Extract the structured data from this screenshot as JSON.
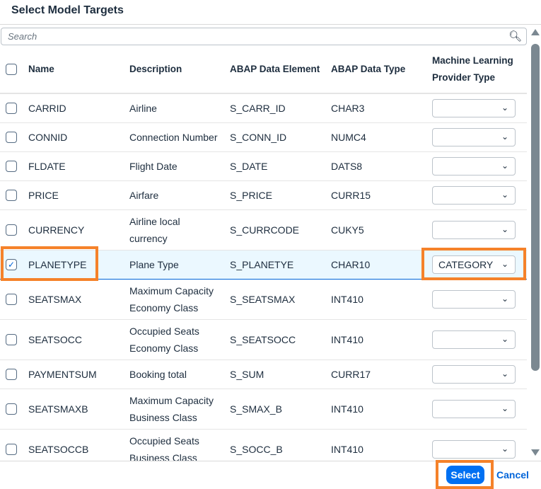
{
  "dialog": {
    "title": "Select Model Targets"
  },
  "search": {
    "placeholder": "Search"
  },
  "columns": {
    "name": "Name",
    "description": "Description",
    "element": "ABAP Data Element",
    "type": "ABAP Data Type",
    "ml_line1": "Machine Learning",
    "ml_line2": "Provider Type"
  },
  "rows": [
    {
      "name": "CARRID",
      "desc1": "Airline",
      "desc2": "",
      "element": "S_CARR_ID",
      "type": "CHAR3",
      "ml": "",
      "checked": false
    },
    {
      "name": "CONNID",
      "desc1": "Connection Number",
      "desc2": "",
      "element": "S_CONN_ID",
      "type": "NUMC4",
      "ml": "",
      "checked": false
    },
    {
      "name": "FLDATE",
      "desc1": "Flight Date",
      "desc2": "",
      "element": "S_DATE",
      "type": "DATS8",
      "ml": "",
      "checked": false
    },
    {
      "name": "PRICE",
      "desc1": "Airfare",
      "desc2": "",
      "element": "S_PRICE",
      "type": "CURR15",
      "ml": "",
      "checked": false
    },
    {
      "name": "CURRENCY",
      "desc1": "Airline local",
      "desc2": "currency",
      "element": "S_CURRCODE",
      "type": "CUKY5",
      "ml": "",
      "checked": false
    },
    {
      "name": "PLANETYPE",
      "desc1": "Plane Type",
      "desc2": "",
      "element": "S_PLANETYE",
      "type": "CHAR10",
      "ml": "CATEGORY",
      "checked": true
    },
    {
      "name": "SEATSMAX",
      "desc1": "Maximum Capacity",
      "desc2": "Economy Class",
      "element": "S_SEATSMAX",
      "type": "INT410",
      "ml": "",
      "checked": false
    },
    {
      "name": "SEATSOCC",
      "desc1": "Occupied Seats",
      "desc2": "Economy Class",
      "element": "S_SEATSOCC",
      "type": "INT410",
      "ml": "",
      "checked": false
    },
    {
      "name": "PAYMENTSUM",
      "desc1": "Booking total",
      "desc2": "",
      "element": "S_SUM",
      "type": "CURR17",
      "ml": "",
      "checked": false
    },
    {
      "name": "SEATSMAXB",
      "desc1": "Maximum Capacity",
      "desc2": "Business Class",
      "element": "S_SMAX_B",
      "type": "INT410",
      "ml": "",
      "checked": false
    },
    {
      "name": "SEATSOCCB",
      "desc1": "Occupied Seats",
      "desc2": "Business Class",
      "element": "S_SOCC_B",
      "type": "INT410",
      "ml": "",
      "checked": false
    }
  ],
  "footer": {
    "select": "Select",
    "cancel": "Cancel"
  },
  "colors": {
    "accent": "#0070f2",
    "highlight": "#f5822a",
    "selected_row": "#ebf8ff"
  }
}
